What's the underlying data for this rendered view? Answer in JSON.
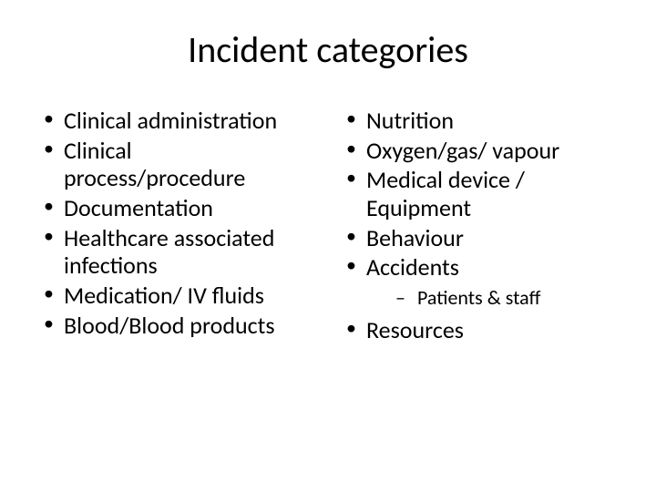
{
  "slide": {
    "title": "Incident categories",
    "title_fontsize": 40,
    "body_fontsize": 26,
    "sub_fontsize": 22,
    "background_color": "#ffffff",
    "text_color": "#000000",
    "font_family": "Calibri",
    "layout": "two-column-bullets",
    "left": {
      "items": [
        "Clinical administration",
        "Clinical process/procedure",
        "Documentation",
        "Healthcare associated infections",
        "Medication/ IV fluids",
        "Blood/Blood products"
      ]
    },
    "right": {
      "items": [
        "Nutrition",
        "Oxygen/gas/ vapour",
        "Medical device / Equipment",
        "Behaviour",
        "Accidents"
      ],
      "accidents_sub": [
        "Patients & staff"
      ],
      "items_after": [
        "Resources"
      ]
    }
  }
}
